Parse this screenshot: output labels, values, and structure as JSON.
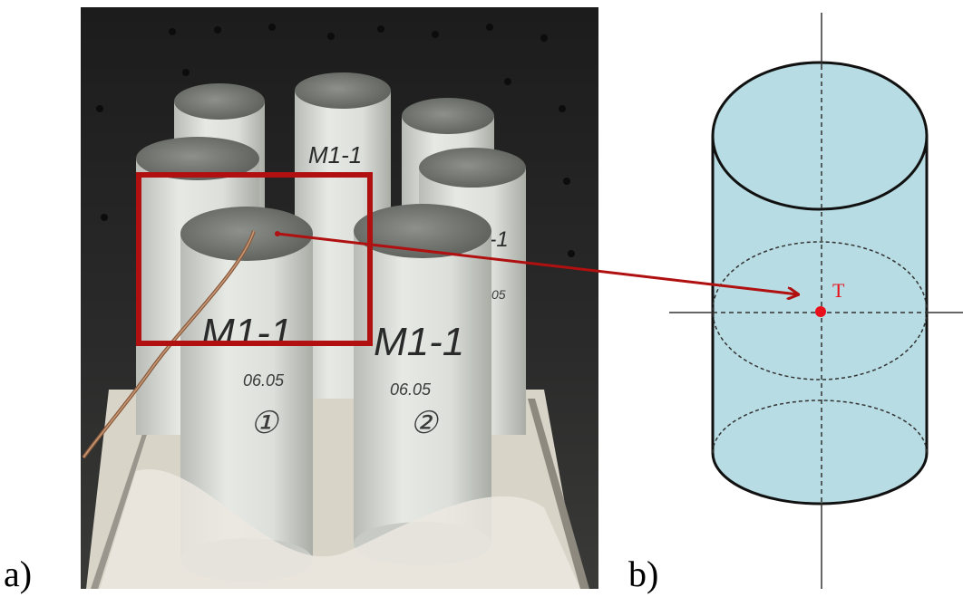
{
  "panels": {
    "a": {
      "label": "a)"
    },
    "b": {
      "label": "b)"
    }
  },
  "photo": {
    "specimen_labels": [
      "M1-1",
      "M1-1"
    ],
    "specimen_dates": [
      "06.05",
      "06.05"
    ],
    "specimen_numbers": [
      "①",
      "②"
    ],
    "background_specimen_label": "M1-1",
    "side_specimen_label": "1-1",
    "side_specimen_date": "05"
  },
  "diagram": {
    "point_label": "T"
  },
  "colors": {
    "highlight_box": "#b01010",
    "arrow": "#b01010",
    "cylinder_fill": "#b7dce3",
    "cylinder_stroke": "#111111",
    "point": "#e8101a",
    "axis": "#333333"
  }
}
